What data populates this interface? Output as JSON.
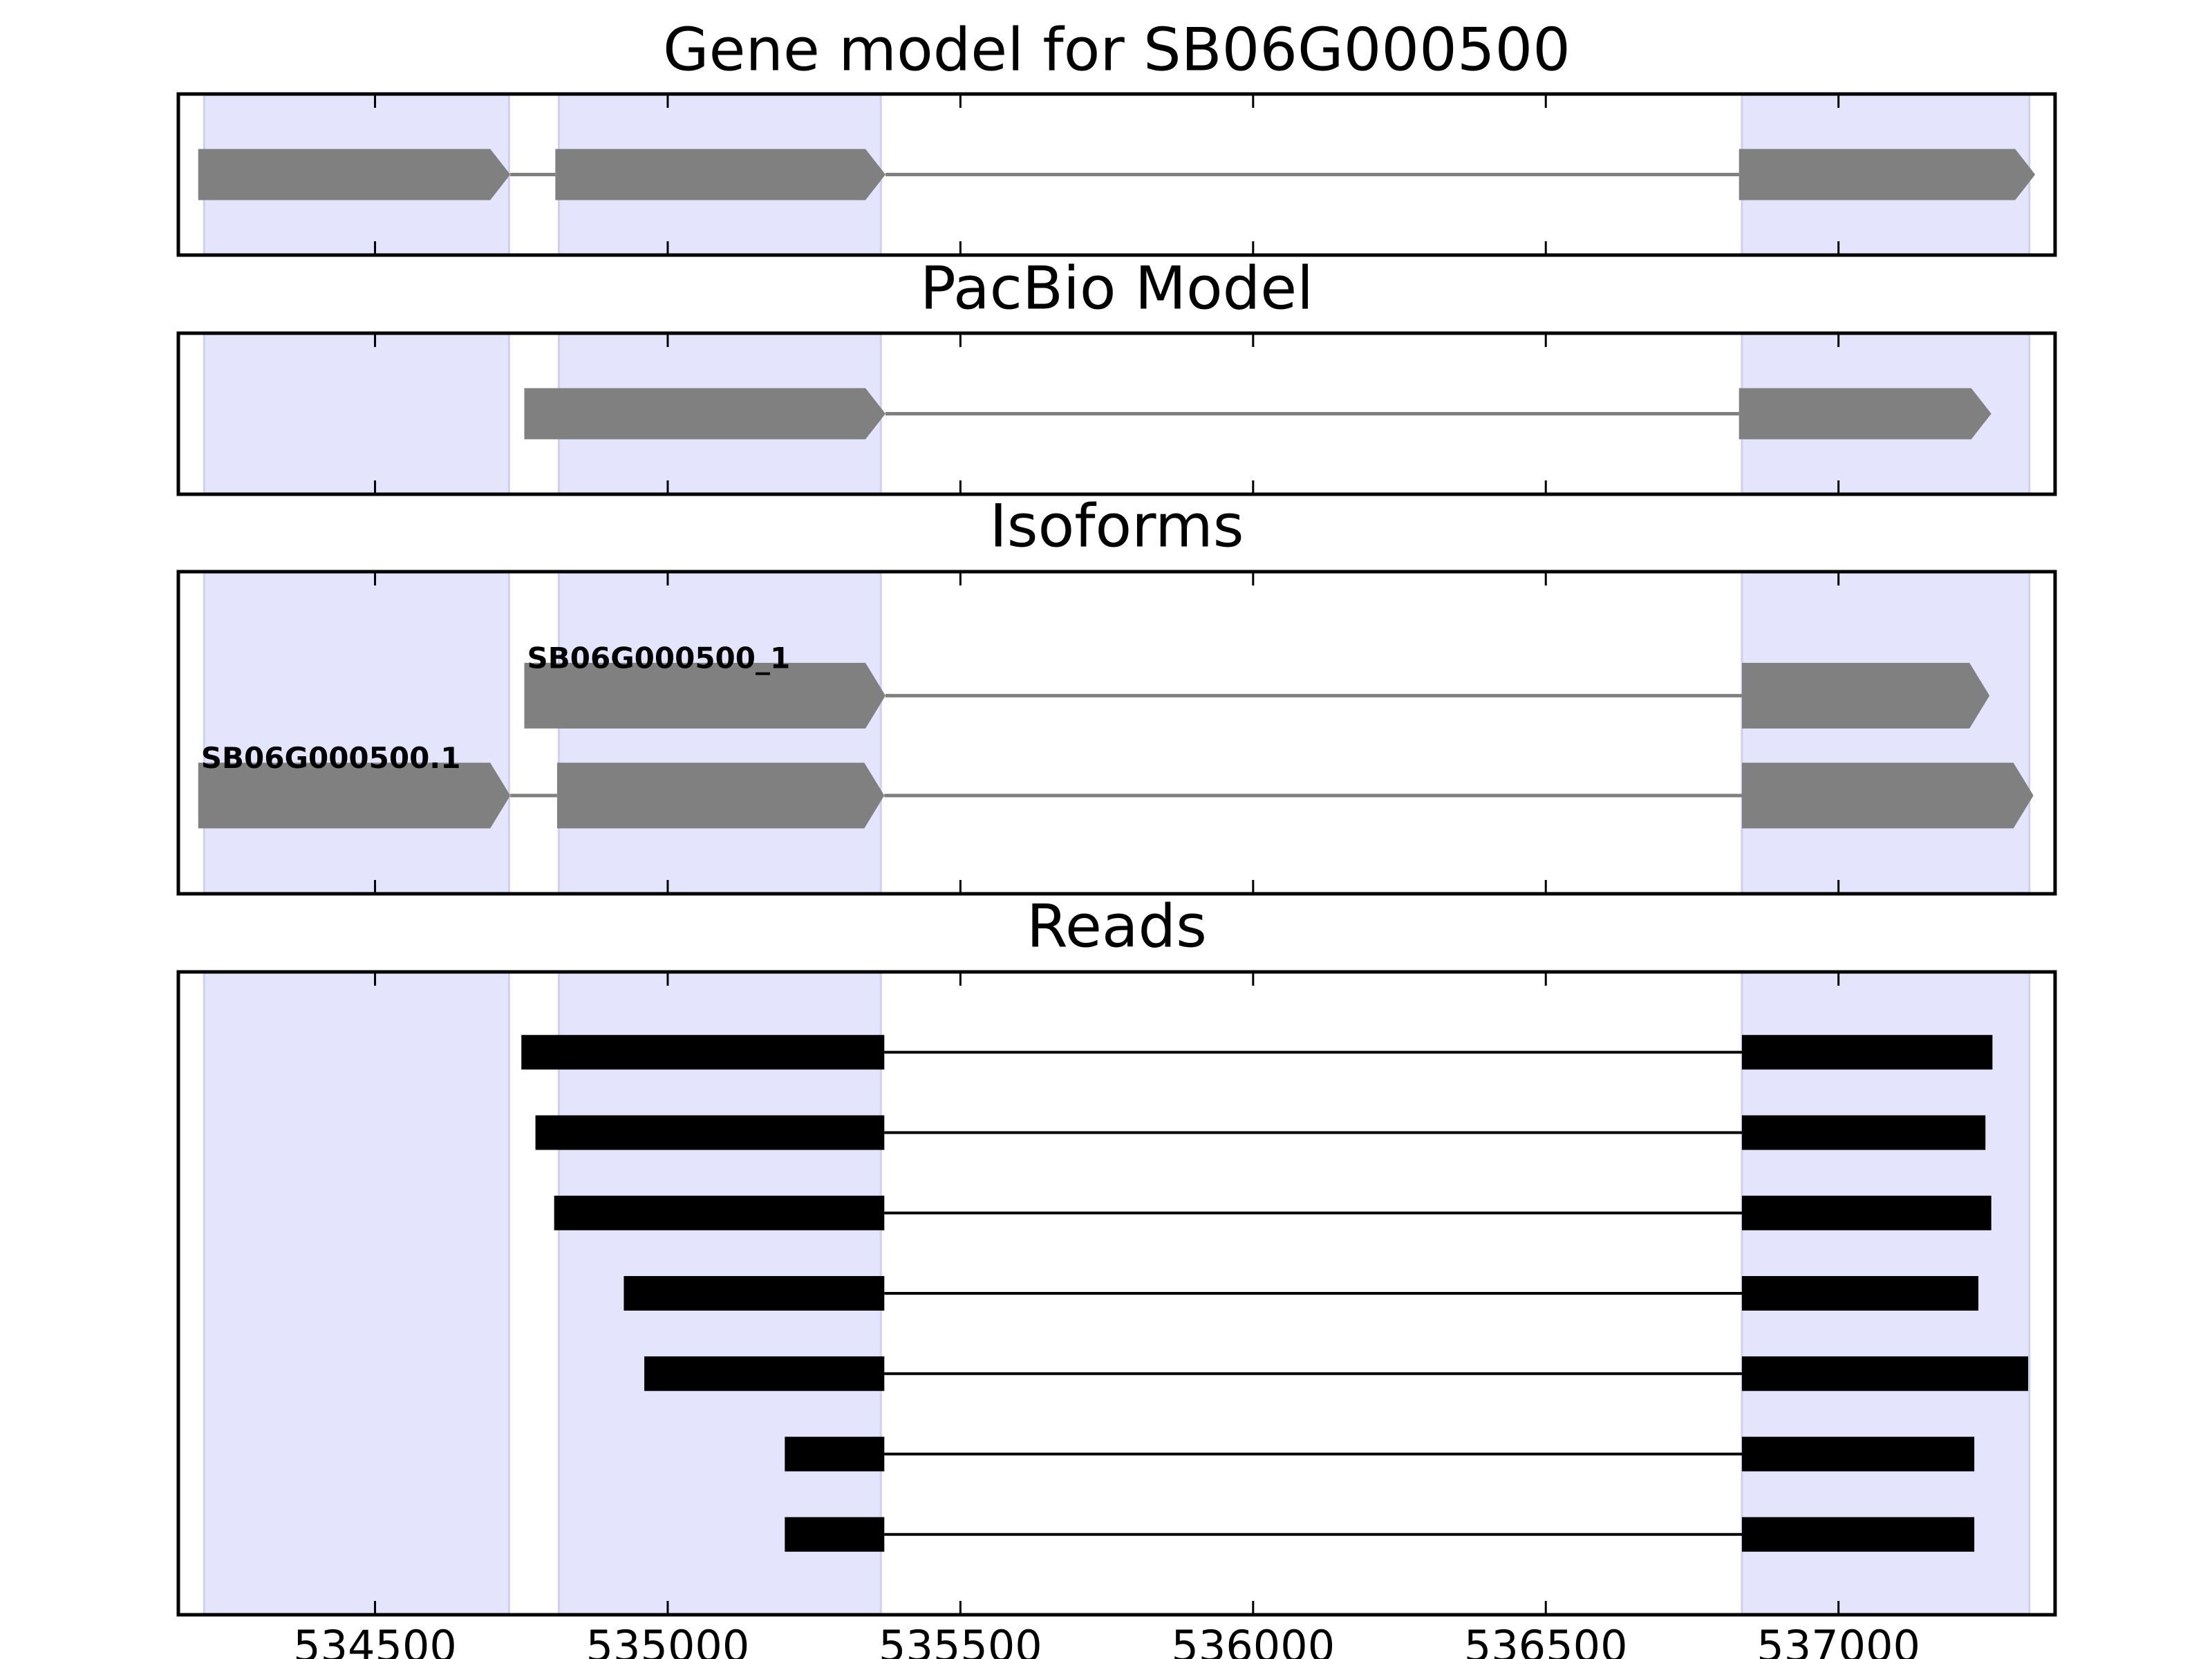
{
  "chart_data": [
    {
      "type": "gene",
      "title": "Gene model for SB06G000500",
      "xlim": [
        534164,
        537370
      ],
      "xticks": [
        534500,
        535000,
        535500,
        536000,
        536500,
        537000
      ],
      "regions": [
        [
          534208,
          534729
        ],
        [
          534814,
          535364
        ],
        [
          536835,
          537326
        ]
      ],
      "region_color": "#e4e4fc",
      "color": "#808080",
      "tracks": [
        {
          "exons": [
            [
              534198,
              534731
            ],
            [
              534808,
              535372
            ],
            [
              536830,
              537336
            ]
          ]
        }
      ]
    },
    {
      "type": "gene",
      "title": "PacBio Model",
      "xlim": [
        534164,
        537370
      ],
      "xticks": [
        534500,
        535000,
        535500,
        536000,
        536500,
        537000
      ],
      "regions": [
        [
          534208,
          534729
        ],
        [
          534814,
          535364
        ],
        [
          536835,
          537326
        ]
      ],
      "region_color": "#e4e4fc",
      "color": "#808080",
      "tracks": [
        {
          "exons": [
            [
              534755,
              535372
            ],
            [
              536830,
              537261
            ]
          ]
        }
      ]
    },
    {
      "type": "gene",
      "title": "Isoforms",
      "xlim": [
        534164,
        537370
      ],
      "xticks": [
        534500,
        535000,
        535500,
        536000,
        536500,
        537000
      ],
      "regions": [
        [
          534208,
          534729
        ],
        [
          534814,
          535364
        ],
        [
          536835,
          537326
        ]
      ],
      "region_color": "#e4e4fc",
      "color": "#808080",
      "tracks": [
        {
          "name": "SB06G000500_1",
          "exons": [
            [
              534755,
              535372
            ],
            [
              536835,
              537258
            ]
          ]
        },
        {
          "name": "SB06G000500.1",
          "exons": [
            [
              534198,
              534731
            ],
            [
              534811,
              535370
            ],
            [
              536835,
              537333
            ]
          ]
        }
      ]
    },
    {
      "type": "reads",
      "title": "Reads",
      "xlim": [
        534164,
        537370
      ],
      "xticks": [
        534500,
        535000,
        535500,
        536000,
        536500,
        537000
      ],
      "regions": [
        [
          534208,
          534729
        ],
        [
          534814,
          535364
        ],
        [
          536835,
          537326
        ]
      ],
      "region_color": "#e4e4fc",
      "color": "#000000",
      "tracks": [
        {
          "exons": [
            [
              534750,
              535370
            ],
            [
              536835,
              537263
            ]
          ]
        },
        {
          "exons": [
            [
              534774,
              535370
            ],
            [
              536835,
              537251
            ]
          ]
        },
        {
          "exons": [
            [
              534806,
              535370
            ],
            [
              536835,
              537261
            ]
          ]
        },
        {
          "exons": [
            [
              534925,
              535370
            ],
            [
              536835,
              537239
            ]
          ]
        },
        {
          "exons": [
            [
              534960,
              535370
            ],
            [
              536835,
              537324
            ]
          ]
        },
        {
          "exons": [
            [
              535200,
              535370
            ],
            [
              536835,
              537232
            ]
          ]
        },
        {
          "exons": [
            [
              535200,
              535370
            ],
            [
              536835,
              537232
            ]
          ]
        }
      ]
    }
  ]
}
